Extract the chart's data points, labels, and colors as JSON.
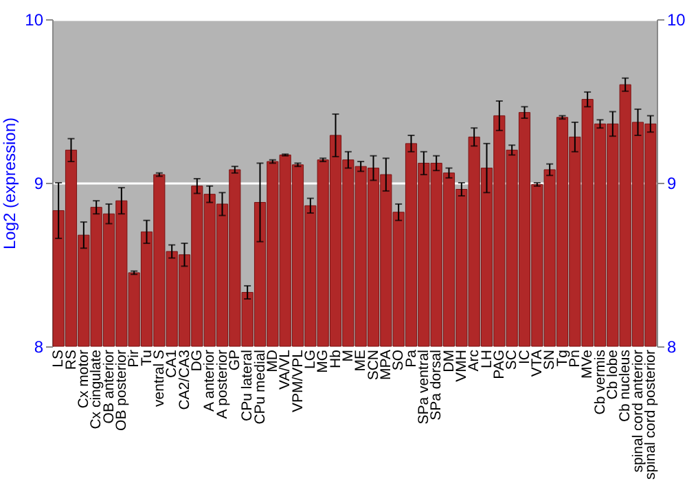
{
  "chart_data": {
    "type": "bar",
    "ylabel": "Log2 (expression)",
    "categories": [
      "LS",
      "RS",
      "Cx motor",
      "Cx cingulate",
      "OB anterior",
      "OB posterior",
      "Pir",
      "Tu",
      "ventral S",
      "CA1",
      "CA2/CA3",
      "DG",
      "A anterior",
      "A posterior",
      "GP",
      "CPu lateral",
      "CPu medial",
      "MD",
      "VA/VL",
      "VPM/VPL",
      "LG",
      "MG",
      "Hb",
      "M",
      "ME",
      "SCN",
      "MPA",
      "SO",
      "Pa",
      "SPa ventral",
      "SPa dorsal",
      "DM",
      "VMH",
      "Arc",
      "LH",
      "PAG",
      "SC",
      "IC",
      "VTA",
      "SN",
      "Tg",
      "Pn",
      "MVe",
      "Cb vermis",
      "Cb lobe",
      "Cb nucleus",
      "spinal cord anterior",
      "spinal cord posterior"
    ],
    "values": [
      8.83,
      9.2,
      8.68,
      8.85,
      8.81,
      8.89,
      8.45,
      8.7,
      9.05,
      8.58,
      8.56,
      8.98,
      8.93,
      8.87,
      9.08,
      8.33,
      8.88,
      9.13,
      9.17,
      9.11,
      8.86,
      9.14,
      9.29,
      9.14,
      9.1,
      9.09,
      9.05,
      8.82,
      9.24,
      9.12,
      9.12,
      9.06,
      8.96,
      9.28,
      9.09,
      9.41,
      9.2,
      9.43,
      8.99,
      9.08,
      9.4,
      9.28,
      9.51,
      9.36,
      9.36,
      9.6,
      9.37,
      9.36
    ],
    "errors": [
      0.17,
      0.07,
      0.08,
      0.04,
      0.06,
      0.08,
      0.01,
      0.07,
      0.01,
      0.04,
      0.07,
      0.045,
      0.05,
      0.07,
      0.02,
      0.04,
      0.24,
      0.01,
      0.005,
      0.01,
      0.045,
      0.01,
      0.13,
      0.05,
      0.03,
      0.075,
      0.1,
      0.05,
      0.05,
      0.07,
      0.045,
      0.03,
      0.04,
      0.055,
      0.15,
      0.09,
      0.03,
      0.035,
      0.01,
      0.035,
      0.01,
      0.09,
      0.045,
      0.025,
      0.075,
      0.04,
      0.08,
      0.05
    ],
    "color": "#b02828",
    "ylim": [
      8,
      10
    ],
    "yticks": [
      8,
      9,
      10
    ],
    "y2lim": [
      8,
      10
    ],
    "y2ticks": [
      8,
      9,
      10
    ],
    "grid": "y"
  }
}
